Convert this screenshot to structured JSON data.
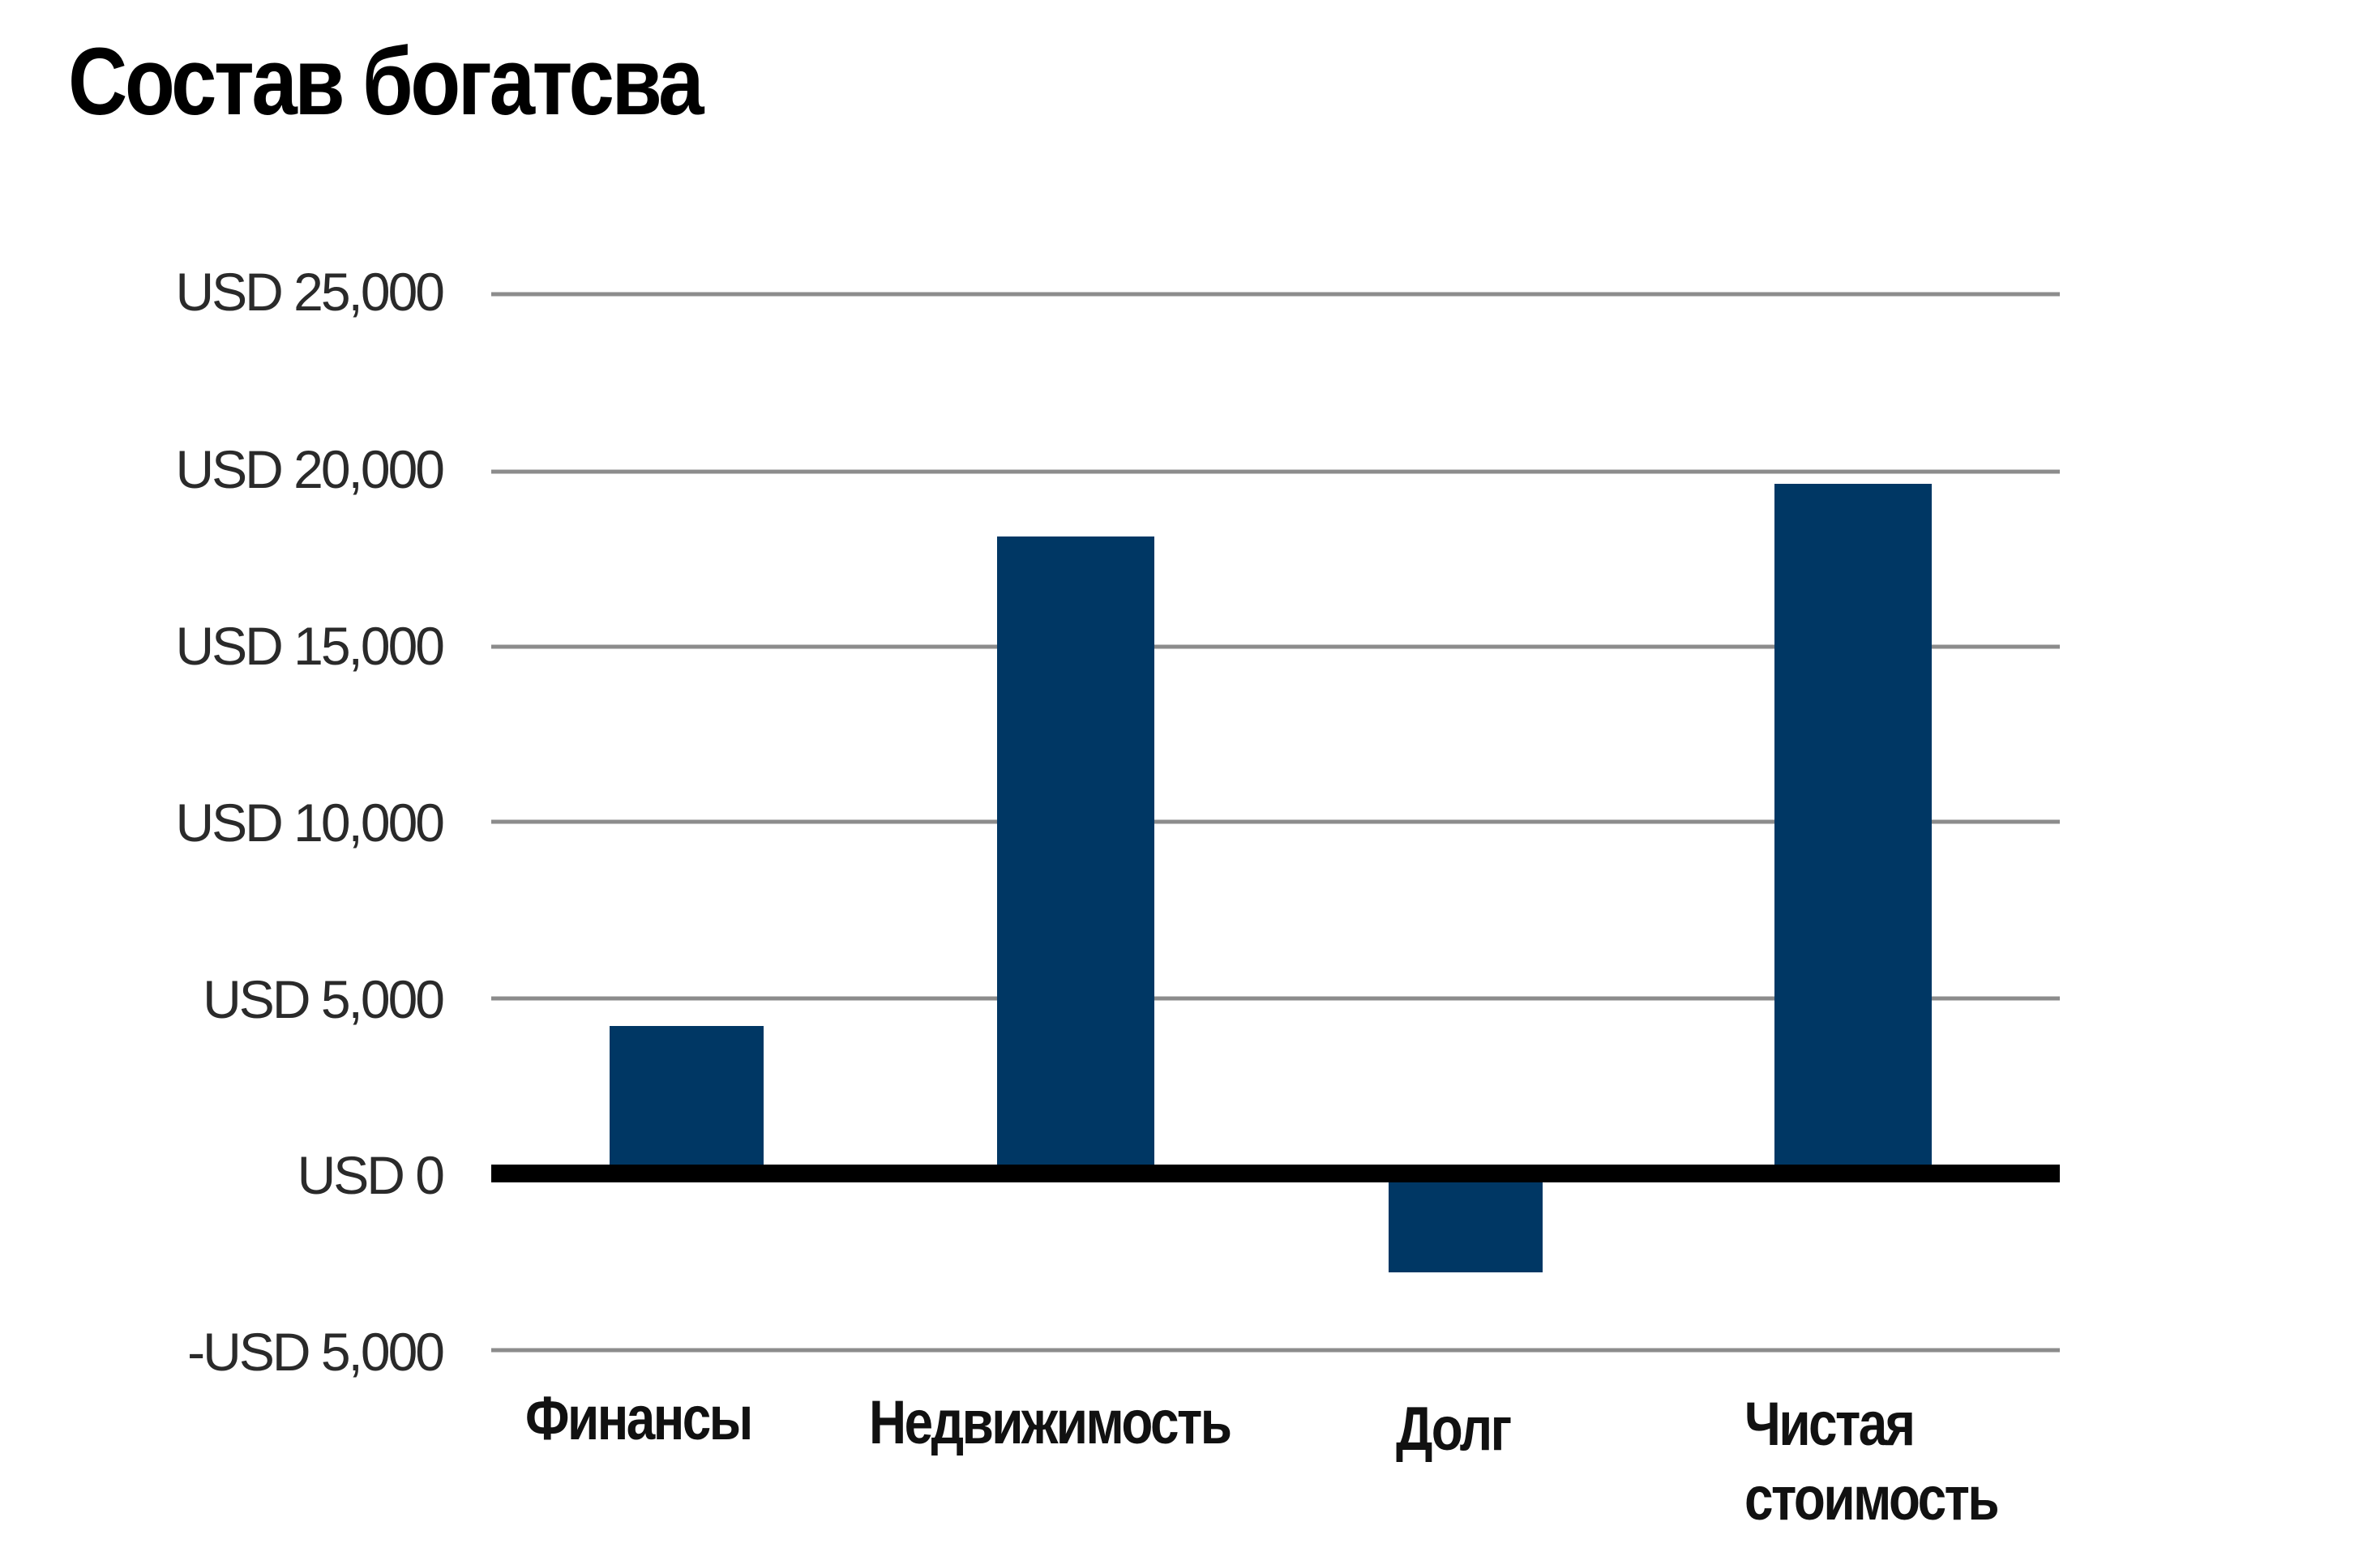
{
  "title": "Состав богатсва",
  "colors": {
    "bar": "#003764",
    "gridline": "#8c8c8c",
    "zero_line": "#000000",
    "background": "#ffffff"
  },
  "y_ticks": [
    {
      "label": "USD 25,000",
      "value": 25000
    },
    {
      "label": "USD 20,000",
      "value": 20000
    },
    {
      "label": "USD 15,000",
      "value": 15000
    },
    {
      "label": "USD 10,000",
      "value": 10000
    },
    {
      "label": "USD 5,000",
      "value": 5000
    },
    {
      "label": "USD 0",
      "value": 0
    },
    {
      "label": "-USD 5,000",
      "value": -5000
    }
  ],
  "x_labels": [
    {
      "line1": "Финансы",
      "line2": ""
    },
    {
      "line1": "Недвижимость",
      "line2": ""
    },
    {
      "line1": "Долг",
      "line2": ""
    },
    {
      "line1": "Чистая",
      "line2": "стоимость"
    }
  ],
  "chart_data": {
    "type": "bar",
    "title": "Состав богатсва",
    "categories": [
      "Финансы",
      "Недвижимость",
      "Долг",
      "Чистая стоимость"
    ],
    "values": [
      4200,
      18100,
      -2800,
      19600
    ],
    "xlabel": "",
    "ylabel": "",
    "ylim": [
      -5000,
      25000
    ],
    "y_tick_labels": [
      "-USD 5,000",
      "USD 0",
      "USD 5,000",
      "USD 10,000",
      "USD 15,000",
      "USD 20,000",
      "USD 25,000"
    ],
    "grid": true,
    "legend": "none",
    "units": "USD"
  }
}
